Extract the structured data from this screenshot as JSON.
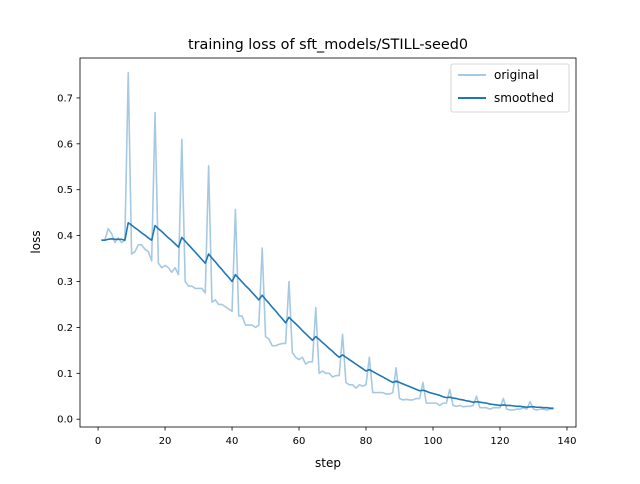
{
  "chart_data": {
    "type": "line",
    "title": "training loss of sft_models/STILL-seed0",
    "xlabel": "step",
    "ylabel": "loss",
    "xlim": [
      -5.4,
      142.7
    ],
    "ylim": [
      -0.017,
      0.787
    ],
    "xticks": [
      0,
      20,
      40,
      60,
      80,
      100,
      120,
      140
    ],
    "yticks": [
      0.0,
      0.1,
      0.2,
      0.3,
      0.4,
      0.5,
      0.6,
      0.7
    ],
    "grid": false,
    "legend_position": "top-right",
    "x_start": 1,
    "series": [
      {
        "name": "original",
        "color": "#a6c9e2",
        "values": [
          0.39,
          0.39,
          0.415,
          0.405,
          0.385,
          0.395,
          0.385,
          0.39,
          0.755,
          0.36,
          0.365,
          0.38,
          0.38,
          0.37,
          0.365,
          0.345,
          0.668,
          0.34,
          0.33,
          0.335,
          0.33,
          0.32,
          0.33,
          0.315,
          0.61,
          0.3,
          0.29,
          0.29,
          0.285,
          0.285,
          0.285,
          0.275,
          0.552,
          0.255,
          0.26,
          0.25,
          0.25,
          0.245,
          0.24,
          0.235,
          0.457,
          0.225,
          0.225,
          0.205,
          0.205,
          0.205,
          0.2,
          0.205,
          0.373,
          0.18,
          0.175,
          0.16,
          0.16,
          0.163,
          0.165,
          0.165,
          0.3,
          0.145,
          0.135,
          0.13,
          0.135,
          0.12,
          0.125,
          0.125,
          0.243,
          0.1,
          0.105,
          0.1,
          0.1,
          0.092,
          0.095,
          0.095,
          0.185,
          0.08,
          0.075,
          0.075,
          0.068,
          0.075,
          0.072,
          0.075,
          0.135,
          0.058,
          0.058,
          0.058,
          0.058,
          0.055,
          0.055,
          0.058,
          0.112,
          0.045,
          0.042,
          0.043,
          0.042,
          0.042,
          0.045,
          0.045,
          0.08,
          0.035,
          0.035,
          0.035,
          0.035,
          0.03,
          0.035,
          0.035,
          0.065,
          0.03,
          0.028,
          0.03,
          0.027,
          0.028,
          0.028,
          0.03,
          0.05,
          0.025,
          0.025,
          0.025,
          0.022,
          0.025,
          0.025,
          0.025,
          0.045,
          0.022,
          0.02,
          0.02,
          0.022,
          0.022,
          0.025,
          0.022,
          0.038,
          0.022,
          0.02,
          0.022,
          0.022,
          0.02,
          0.022,
          0.022
        ]
      },
      {
        "name": "smoothed",
        "color": "#1f77b4",
        "values": [
          0.39,
          0.39,
          0.392,
          0.393,
          0.392,
          0.392,
          0.392,
          0.39,
          0.428,
          0.423,
          0.417,
          0.412,
          0.406,
          0.401,
          0.395,
          0.39,
          0.422,
          0.415,
          0.409,
          0.402,
          0.395,
          0.389,
          0.382,
          0.375,
          0.396,
          0.388,
          0.38,
          0.372,
          0.364,
          0.356,
          0.348,
          0.34,
          0.36,
          0.351,
          0.343,
          0.334,
          0.326,
          0.317,
          0.309,
          0.3,
          0.315,
          0.307,
          0.299,
          0.291,
          0.284,
          0.276,
          0.268,
          0.26,
          0.27,
          0.261,
          0.253,
          0.244,
          0.236,
          0.227,
          0.219,
          0.21,
          0.222,
          0.215,
          0.208,
          0.201,
          0.193,
          0.186,
          0.179,
          0.172,
          0.18,
          0.174,
          0.167,
          0.161,
          0.154,
          0.148,
          0.141,
          0.135,
          0.14,
          0.135,
          0.13,
          0.125,
          0.12,
          0.115,
          0.11,
          0.105,
          0.108,
          0.104,
          0.1,
          0.096,
          0.092,
          0.088,
          0.084,
          0.08,
          0.083,
          0.08,
          0.077,
          0.074,
          0.071,
          0.068,
          0.065,
          0.062,
          0.063,
          0.061,
          0.058,
          0.056,
          0.054,
          0.052,
          0.049,
          0.047,
          0.048,
          0.046,
          0.045,
          0.043,
          0.042,
          0.04,
          0.039,
          0.037,
          0.038,
          0.037,
          0.036,
          0.035,
          0.033,
          0.032,
          0.031,
          0.03,
          0.031,
          0.03,
          0.03,
          0.029,
          0.028,
          0.028,
          0.027,
          0.026,
          0.027,
          0.027,
          0.026,
          0.026,
          0.025,
          0.025,
          0.024,
          0.024
        ]
      }
    ]
  }
}
